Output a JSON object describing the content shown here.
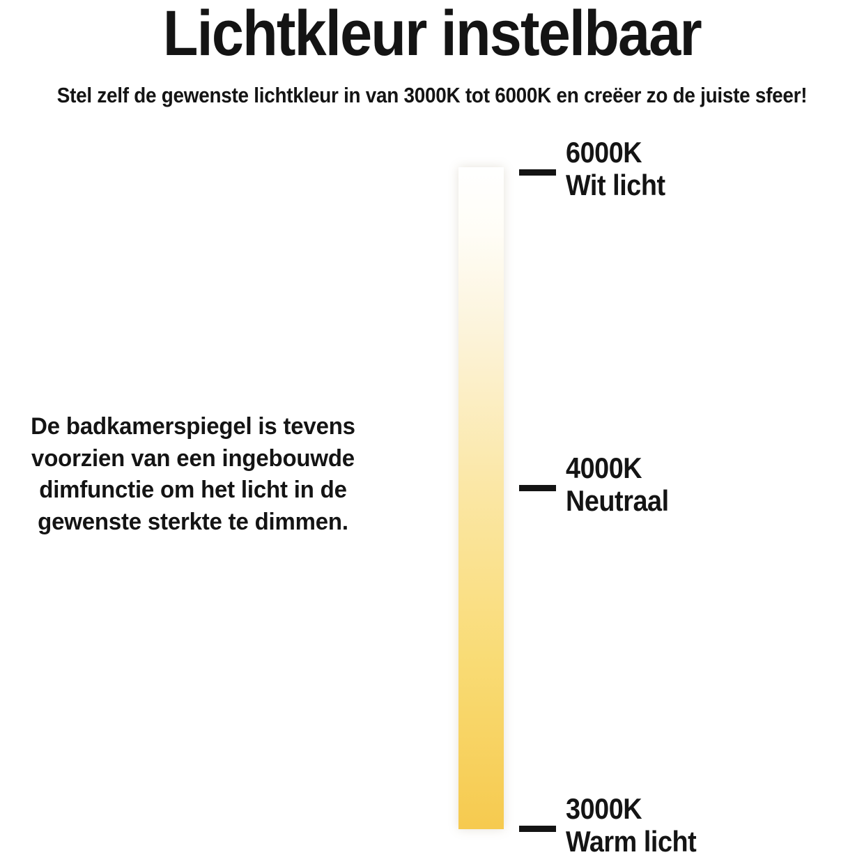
{
  "header": {
    "title": "Lichtkleur instelbaar",
    "subtitle": "Stel zelf de gewenste lichtkleur in van 3000K tot 6000K en creëer zo de juiste sfeer!"
  },
  "description": {
    "lines": [
      "De badkamerspiegel is tevens",
      "voorzien van een ingebouwde",
      "dimfunctie om het licht in de",
      "gewenste sterkte te dimmen."
    ]
  },
  "temperature_scale": {
    "gradient_colors": {
      "top_6000k": "#FFFFFF",
      "middle_4000k": "#FBE7A6",
      "bottom_3000k": "#F6CA4F"
    },
    "markers": [
      {
        "kelvin": "6000K",
        "label": "Wit licht"
      },
      {
        "kelvin": "4000K",
        "label": "Neutraal"
      },
      {
        "kelvin": "3000K",
        "label": "Warm licht"
      }
    ]
  }
}
